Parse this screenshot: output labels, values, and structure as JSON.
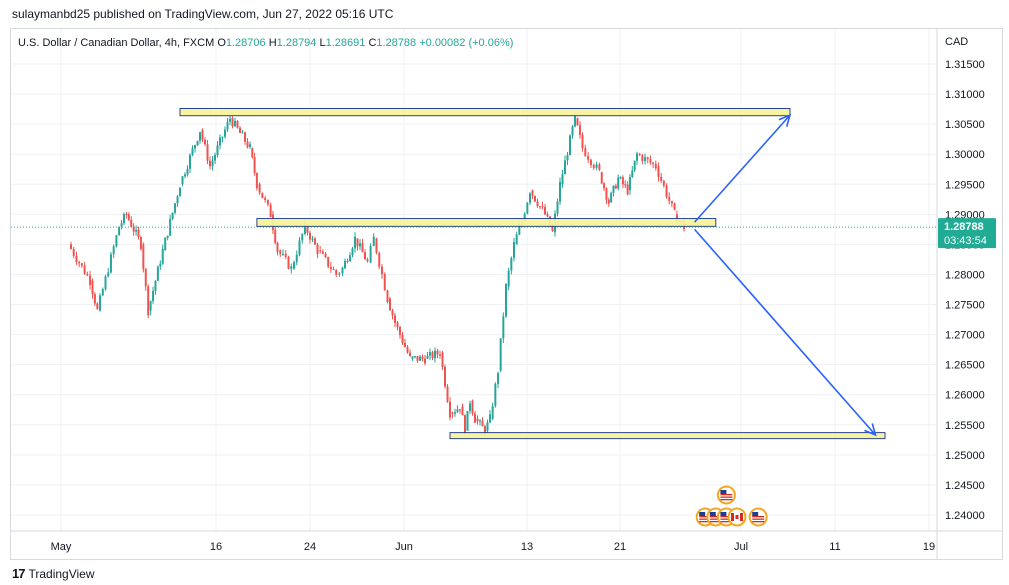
{
  "header": {
    "publisher_text": "sulaymanbd25 published on TradingView.com, Jun 27, 2022 05:16 UTC"
  },
  "footer": {
    "logo_glyph": "17",
    "brand": "TradingView"
  },
  "colors": {
    "up": "#26a69a",
    "down": "#ef5350",
    "zone_fill": "#f7f39a",
    "zone_stroke": "#1e3a8a",
    "arrow": "#2962ff",
    "price_label_bg": "#22ab94",
    "grid": "#eef0f3"
  },
  "chart_data": {
    "type": "candlestick",
    "title": "U.S. Dollar / Canadian Dollar, 4h, FXCM",
    "ohlc": {
      "o_label": "O",
      "o": "1.28706",
      "h_label": "H",
      "h": "1.28794",
      "l_label": "L",
      "l": "1.28691",
      "c_label": "C",
      "c": "1.28788",
      "change": "+0.00082 (+0.06%)"
    },
    "currency": "CAD",
    "y_ticks": [
      "1.31500",
      "1.31000",
      "1.30500",
      "1.30000",
      "1.29500",
      "1.29000",
      "1.28500",
      "1.28000",
      "1.27500",
      "1.27000",
      "1.26500",
      "1.26000",
      "1.25500",
      "1.25000",
      "1.24500",
      "1.24000"
    ],
    "ylim": [
      1.2365,
      1.319
    ],
    "x_ticks": [
      "May",
      "16",
      "24",
      "Jun",
      "13",
      "21",
      "Jul",
      "11",
      "19"
    ],
    "last_price": "1.28788",
    "countdown": "03:43:54",
    "price_path": [
      {
        "date": "2022-05-02",
        "price": 1.285
      },
      {
        "date": "2022-05-05",
        "price": 1.279
      },
      {
        "date": "2022-05-06",
        "price": 1.274
      },
      {
        "date": "2022-05-09",
        "price": 1.288
      },
      {
        "date": "2022-05-10",
        "price": 1.29
      },
      {
        "date": "2022-05-12",
        "price": 1.285
      },
      {
        "date": "2022-05-13",
        "price": 1.274
      },
      {
        "date": "2022-05-15",
        "price": 1.284
      },
      {
        "date": "2022-05-17",
        "price": 1.295
      },
      {
        "date": "2022-05-19",
        "price": 1.304
      },
      {
        "date": "2022-05-20",
        "price": 1.298
      },
      {
        "date": "2022-05-22",
        "price": 1.306
      },
      {
        "date": "2022-05-24",
        "price": 1.301
      },
      {
        "date": "2022-05-25",
        "price": 1.295
      },
      {
        "date": "2022-05-27",
        "price": 1.29
      },
      {
        "date": "2022-05-28",
        "price": 1.284
      },
      {
        "date": "2022-05-30",
        "price": 1.281
      },
      {
        "date": "2022-06-01",
        "price": 1.288
      },
      {
        "date": "2022-06-03",
        "price": 1.284
      },
      {
        "date": "2022-06-06",
        "price": 1.28
      },
      {
        "date": "2022-06-07",
        "price": 1.281
      },
      {
        "date": "2022-06-09",
        "price": 1.286
      },
      {
        "date": "2022-06-11",
        "price": 1.282
      },
      {
        "date": "2022-06-12",
        "price": 1.286
      },
      {
        "date": "2022-06-14",
        "price": 1.276
      },
      {
        "date": "2022-06-15",
        "price": 1.272
      },
      {
        "date": "2022-06-17",
        "price": 1.266
      },
      {
        "date": "2022-06-19",
        "price": 1.266
      },
      {
        "date": "2022-06-21",
        "price": 1.267
      },
      {
        "date": "2022-06-23",
        "price": 1.257
      },
      {
        "date": "2022-06-25",
        "price": 1.258
      },
      {
        "date": "2022-06-26",
        "price": 1.254
      },
      {
        "date": "2022-06-27",
        "price": 1.259
      },
      {
        "date": "2022-06-28",
        "price": 1.256
      },
      {
        "date": "2022-06-30",
        "price": 1.254
      },
      {
        "date": "2022-07-01",
        "price": 1.256
      },
      {
        "date": "2022-07-03",
        "price": 1.264
      },
      {
        "date": "2022-07-05",
        "price": 1.278
      },
      {
        "date": "2022-07-07",
        "price": 1.285
      },
      {
        "date": "2022-07-09",
        "price": 1.289
      },
      {
        "date": "2022-07-11",
        "price": 1.294
      },
      {
        "date": "2022-07-13",
        "price": 1.29
      },
      {
        "date": "2022-07-14",
        "price": 1.287
      },
      {
        "date": "2022-07-15",
        "price": 1.295
      },
      {
        "date": "2022-07-17",
        "price": 1.306
      },
      {
        "date": "2022-07-18",
        "price": 1.301
      },
      {
        "date": "2022-07-20",
        "price": 1.297
      },
      {
        "date": "2022-07-21",
        "price": 1.292
      },
      {
        "date": "2022-07-22",
        "price": 1.296
      },
      {
        "date": "2022-07-23",
        "price": 1.294
      },
      {
        "date": "2022-07-24",
        "price": 1.3
      },
      {
        "date": "2022-07-26",
        "price": 1.298
      },
      {
        "date": "2022-07-28",
        "price": 1.29
      },
      {
        "date": "2022-07-29",
        "price": 1.2879
      }
    ],
    "zones": [
      {
        "name": "resistance",
        "date_from": "2022-05-17",
        "date_to": "2022-08-08",
        "price_low": 1.3064,
        "price_high": 1.3076
      },
      {
        "name": "pivot",
        "date_from": "2022-05-25",
        "date_to": "2022-08-01",
        "price_low": 1.288,
        "price_high": 1.2893
      },
      {
        "name": "support",
        "date_from": "2022-06-23",
        "date_to": "2022-08-18",
        "price_low": 1.2527,
        "price_high": 1.2537
      }
    ],
    "arrows": [
      {
        "name": "arrow-up",
        "from_date": "2022-07-30",
        "from_price": 1.2887,
        "to_date": "2022-08-08",
        "to_price": 1.3065
      },
      {
        "name": "arrow-down",
        "from_date": "2022-07-30",
        "from_price": 1.2875,
        "to_date": "2022-08-17",
        "to_price": 1.2533
      }
    ],
    "event_flags": [
      {
        "name": "us-flag",
        "date": "2022-08-02",
        "row": 1
      },
      {
        "name": "us-flag",
        "date": "2022-07-31",
        "row": 0
      },
      {
        "name": "us-flag",
        "date": "2022-08-01",
        "row": 0
      },
      {
        "name": "us-flag",
        "date": "2022-08-02",
        "row": 0
      },
      {
        "name": "ca-flag",
        "date": "2022-08-03",
        "row": 0
      },
      {
        "name": "us-flag",
        "date": "2022-08-05",
        "row": 0
      }
    ],
    "grid": true
  }
}
